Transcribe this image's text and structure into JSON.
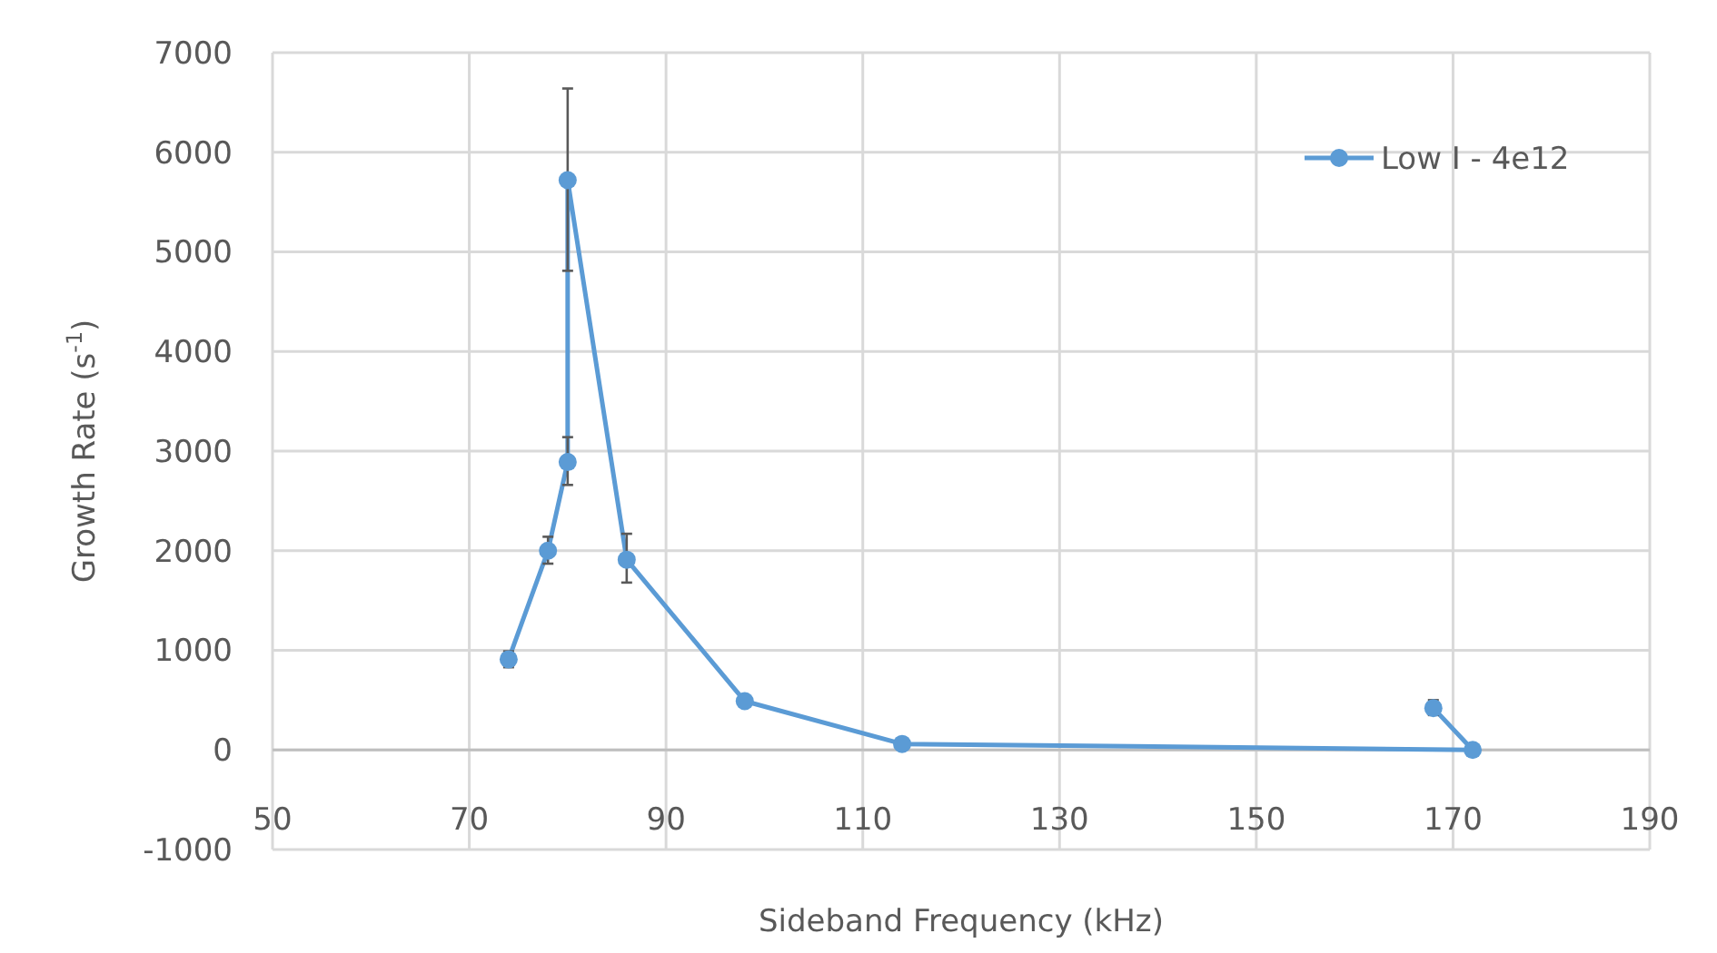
{
  "chart_data": {
    "type": "line",
    "xlabel": "Sideband Frequency (kHz)",
    "ylabel": "Growth Rate (s$^{-1}$)",
    "x": [
      74,
      78,
      80,
      80,
      86,
      98,
      114,
      172,
      168
    ],
    "series": [
      {
        "name": "Low I - 4e12",
        "color": "#5b9bd5",
        "values": [
          910,
          2000,
          2890,
          5720,
          1910,
          490,
          60,
          0,
          420
        ],
        "errors": [
          [
            830,
            990
          ],
          [
            1870,
            2140
          ],
          [
            2660,
            3140
          ],
          [
            4810,
            6640
          ],
          [
            1680,
            2170
          ],
          null,
          null,
          null,
          [
            350,
            500
          ]
        ]
      }
    ],
    "xlim": [
      50,
      190
    ],
    "xticks": [
      50,
      70,
      90,
      110,
      130,
      150,
      170,
      190
    ],
    "ylim": [
      -1000,
      7000
    ],
    "yticks": [
      -1000,
      0,
      1000,
      2000,
      3000,
      4000,
      5000,
      6000,
      7000
    ],
    "grid": true,
    "legend": "top right",
    "marker": "circle",
    "line_style": "solid"
  }
}
